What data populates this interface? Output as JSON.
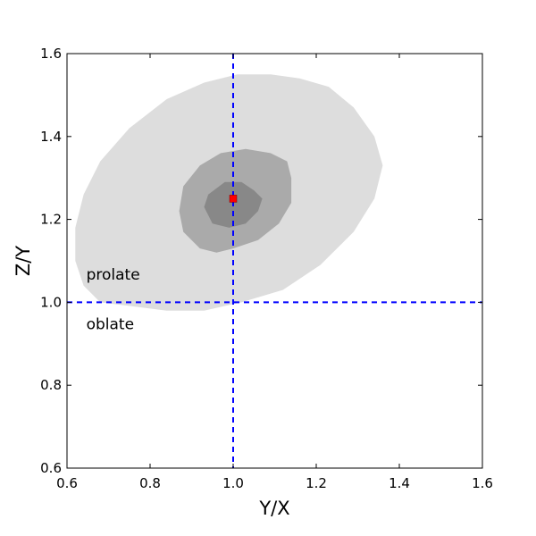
{
  "chart_data": {
    "type": "contour",
    "xlabel": "Y/X",
    "ylabel": "Z/Y",
    "xlim": [
      0.6,
      1.6
    ],
    "ylim": [
      0.6,
      1.6
    ],
    "xticks": [
      "0.6",
      "0.8",
      "1.0",
      "1.2",
      "1.4",
      "1.6"
    ],
    "yticks": [
      "0.6",
      "0.8",
      "1.0",
      "1.2",
      "1.4",
      "1.6"
    ],
    "grid": false,
    "contours": [
      {
        "level": "outer",
        "color": "#dddddd",
        "points": [
          [
            0.68,
            1.0
          ],
          [
            0.64,
            1.04
          ],
          [
            0.62,
            1.1
          ],
          [
            0.62,
            1.18
          ],
          [
            0.64,
            1.26
          ],
          [
            0.68,
            1.34
          ],
          [
            0.75,
            1.42
          ],
          [
            0.84,
            1.49
          ],
          [
            0.93,
            1.53
          ],
          [
            1.01,
            1.55
          ],
          [
            1.09,
            1.55
          ],
          [
            1.16,
            1.54
          ],
          [
            1.23,
            1.52
          ],
          [
            1.29,
            1.47
          ],
          [
            1.34,
            1.4
          ],
          [
            1.36,
            1.33
          ],
          [
            1.34,
            1.25
          ],
          [
            1.29,
            1.17
          ],
          [
            1.21,
            1.09
          ],
          [
            1.12,
            1.03
          ],
          [
            1.02,
            1.0
          ],
          [
            0.93,
            0.98
          ],
          [
            0.84,
            0.98
          ],
          [
            0.76,
            0.99
          ]
        ]
      },
      {
        "level": "middle",
        "color": "#aaaaaa",
        "points": [
          [
            0.92,
            1.13
          ],
          [
            0.88,
            1.17
          ],
          [
            0.87,
            1.22
          ],
          [
            0.88,
            1.28
          ],
          [
            0.92,
            1.33
          ],
          [
            0.97,
            1.36
          ],
          [
            1.03,
            1.37
          ],
          [
            1.09,
            1.36
          ],
          [
            1.13,
            1.34
          ],
          [
            1.14,
            1.3
          ],
          [
            1.14,
            1.24
          ],
          [
            1.11,
            1.19
          ],
          [
            1.06,
            1.15
          ],
          [
            1.0,
            1.13
          ],
          [
            0.96,
            1.12
          ]
        ]
      },
      {
        "level": "inner",
        "color": "#888888",
        "points": [
          [
            0.95,
            1.19
          ],
          [
            0.93,
            1.23
          ],
          [
            0.94,
            1.26
          ],
          [
            0.98,
            1.29
          ],
          [
            1.02,
            1.29
          ],
          [
            1.05,
            1.27
          ],
          [
            1.07,
            1.25
          ],
          [
            1.06,
            1.22
          ],
          [
            1.03,
            1.19
          ],
          [
            0.99,
            1.18
          ]
        ]
      }
    ],
    "marker": {
      "x": 1.0,
      "y": 1.25,
      "color": "#ff0000"
    },
    "reference_lines": [
      {
        "orientation": "vertical",
        "value": 1.0,
        "color": "#0000ff",
        "style": "dashed"
      },
      {
        "orientation": "horizontal",
        "value": 1.0,
        "color": "#0000ff",
        "style": "dashed"
      }
    ],
    "annotations": [
      {
        "text": "prolate",
        "x": 0.64,
        "y": 1.055
      },
      {
        "text": "oblate",
        "x": 0.64,
        "y": 0.935
      }
    ]
  }
}
